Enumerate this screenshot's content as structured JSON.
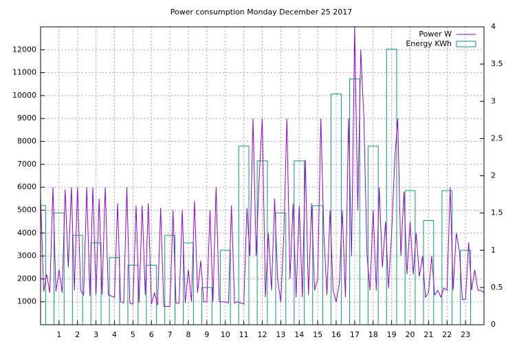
{
  "chart_data": {
    "type": "line",
    "title": "Power consumption Monday December 25 2017",
    "x": [
      0,
      0.17,
      0.33,
      0.5,
      0.67,
      0.83,
      1,
      1.17,
      1.33,
      1.5,
      1.67,
      1.83,
      2,
      2.17,
      2.33,
      2.5,
      2.67,
      2.83,
      3,
      3.17,
      3.33,
      3.5,
      3.67,
      3.83,
      4,
      4.17,
      4.33,
      4.5,
      4.67,
      4.83,
      5,
      5.17,
      5.33,
      5.5,
      5.67,
      5.83,
      6,
      6.17,
      6.33,
      6.5,
      6.67,
      6.83,
      7,
      7.17,
      7.33,
      7.5,
      7.67,
      7.83,
      8,
      8.17,
      8.33,
      8.5,
      8.67,
      8.83,
      9,
      9.17,
      9.33,
      9.5,
      9.67,
      9.83,
      10,
      10.17,
      10.33,
      10.5,
      10.67,
      10.83,
      11,
      11.17,
      11.33,
      11.5,
      11.67,
      11.83,
      12,
      12.17,
      12.33,
      12.5,
      12.67,
      12.83,
      13,
      13.17,
      13.33,
      13.5,
      13.67,
      13.83,
      14,
      14.17,
      14.33,
      14.5,
      14.67,
      14.83,
      15,
      15.17,
      15.33,
      15.5,
      15.67,
      15.83,
      16,
      16.17,
      16.33,
      16.5,
      16.67,
      16.83,
      17,
      17.17,
      17.33,
      17.5,
      17.67,
      17.83,
      18,
      18.17,
      18.33,
      18.5,
      18.67,
      18.83,
      19,
      19.17,
      19.33,
      19.5,
      19.67,
      19.83,
      20,
      20.17,
      20.33,
      20.5,
      20.67,
      20.83,
      21,
      21.17,
      21.33,
      21.5,
      21.67,
      21.83,
      22,
      22.17,
      22.33,
      22.5,
      22.67,
      22.83,
      23,
      23.17,
      23.33,
      23.5,
      23.67,
      23.83,
      24
    ],
    "series": [
      {
        "name": "Power W",
        "color": "#9400d3",
        "values": [
          5600,
          1450,
          2200,
          1400,
          6000,
          1450,
          2400,
          1400,
          5900,
          2500,
          6000,
          1500,
          6000,
          1500,
          1300,
          6000,
          1250,
          6000,
          1300,
          5500,
          1300,
          6000,
          1300,
          1250,
          1200,
          5300,
          1000,
          950,
          6000,
          950,
          900,
          5200,
          950,
          5200,
          1300,
          5300,
          900,
          1400,
          850,
          5100,
          800,
          800,
          800,
          5000,
          950,
          950,
          5000,
          950,
          2400,
          1000,
          5400,
          1400,
          2800,
          1000,
          1000,
          5000,
          1000,
          6000,
          1000,
          1000,
          1000,
          950,
          5200,
          950,
          1000,
          950,
          900,
          5100,
          3000,
          9000,
          3000,
          6400,
          9000,
          1200,
          4000,
          1500,
          5500,
          2000,
          1000,
          4000,
          9000,
          2000,
          5300,
          1200,
          5200,
          1200,
          7200,
          1300,
          5300,
          1500,
          2000,
          9000,
          4000,
          1300,
          5000,
          1500,
          1000,
          1800,
          5000,
          1200,
          9000,
          3000,
          13000,
          5000,
          12000,
          9000,
          3000,
          1500,
          5000,
          1500,
          6000,
          2500,
          4500,
          1600,
          4000,
          7200,
          9000,
          3000,
          5800,
          2200,
          4500,
          2200,
          4000,
          2100,
          3000,
          1200,
          1400,
          3000,
          1300,
          1500,
          1200,
          1600,
          1500,
          6000,
          1500,
          4000,
          3200,
          1100,
          1100,
          3600,
          1500,
          2400,
          1500,
          1500,
          1400
        ]
      },
      {
        "name": "Energy KWh",
        "color": "#009e73",
        "style": "boxes",
        "axis": "y2",
        "x": [
          0,
          1,
          2,
          3,
          4,
          5,
          6,
          7,
          8,
          9,
          10,
          11,
          12,
          13,
          14,
          15,
          16,
          17,
          18,
          19,
          20,
          21,
          22,
          23
        ],
        "values": [
          1.6,
          1.5,
          1.2,
          1.1,
          0.9,
          0.8,
          0.8,
          1.2,
          1.1,
          0.5,
          1.0,
          2.4,
          2.2,
          1.5,
          2.2,
          1.6,
          3.1,
          3.3,
          2.4,
          3.7,
          1.8,
          1.4,
          1.8,
          1.0
        ]
      }
    ],
    "xlim": [
      0,
      24
    ],
    "xticks": [
      1,
      2,
      3,
      4,
      5,
      6,
      7,
      8,
      9,
      10,
      11,
      12,
      13,
      14,
      15,
      16,
      17,
      18,
      19,
      20,
      21,
      22,
      23
    ],
    "ylim": [
      0,
      13000
    ],
    "yticks": [
      1000,
      2000,
      3000,
      4000,
      5000,
      6000,
      7000,
      8000,
      9000,
      10000,
      11000,
      12000
    ],
    "y2lim": [
      0,
      4
    ],
    "y2ticks": [
      0,
      0.5,
      1,
      1.5,
      2,
      2.5,
      3,
      3.5,
      4
    ],
    "grid": true,
    "legend": "top-right"
  }
}
